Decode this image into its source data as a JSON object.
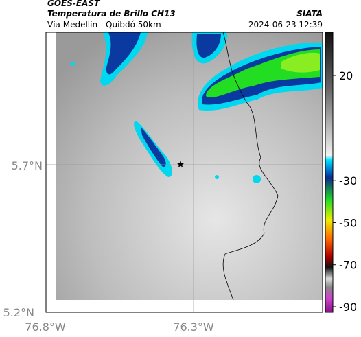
{
  "header": {
    "left_title": "GOES-EAST",
    "left_subtitle": "Temperatura de Brillo CH13",
    "left_caption": "Vía Medellín - Quibdó 50km",
    "right_title": "SIATA",
    "right_caption": "2024-06-23 12:39"
  },
  "map": {
    "lat_labels": [
      "5.7°N",
      "5.2°N"
    ],
    "lon_labels": [
      "76.8°W",
      "76.3°W"
    ]
  },
  "colorbar": {
    "ticks": [
      20,
      -30,
      -50,
      -70,
      -90
    ]
  }
}
